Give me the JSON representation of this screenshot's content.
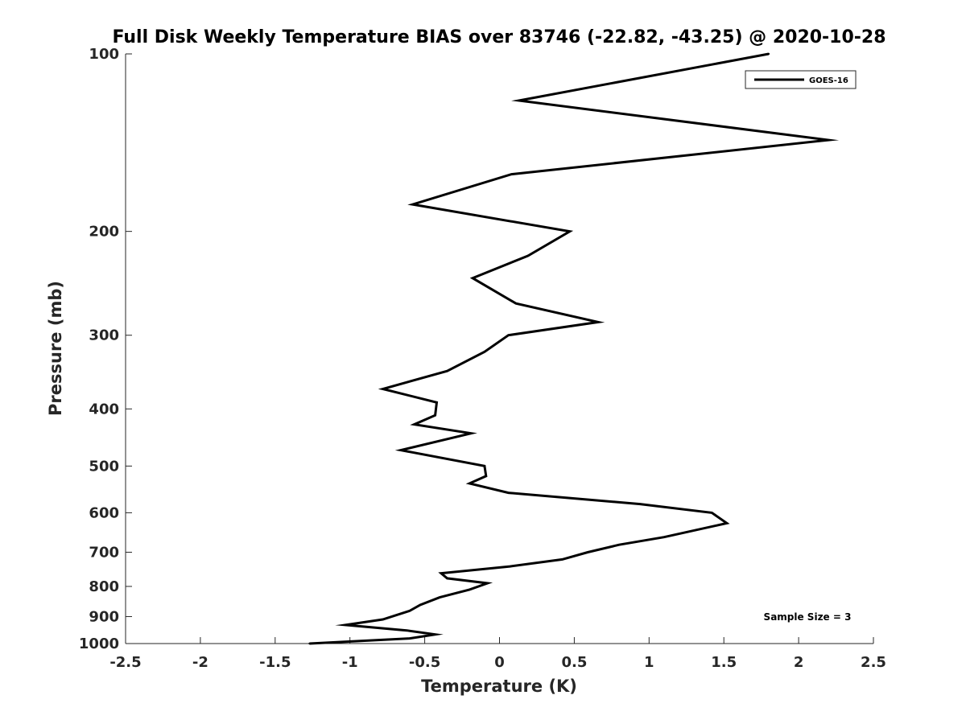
{
  "chart_data": {
    "type": "line",
    "title": "Full Disk Weekly Temperature BIAS over 83746 (-22.82, -43.25) @ 2020-10-28",
    "xlabel": "Temperature (K)",
    "ylabel": "Pressure (mb)",
    "xlim": [
      -2.5,
      2.5
    ],
    "ylim": [
      100,
      1000
    ],
    "y_scale": "log",
    "y_reversed": true,
    "grid": false,
    "legend_position": "top-right",
    "x_ticks": [
      "-2.5",
      "-2",
      "-1.5",
      "-1",
      "-0.5",
      "0",
      "0.5",
      "1",
      "1.5",
      "2",
      "2.5"
    ],
    "y_ticks": [
      "100",
      "200",
      "300",
      "400",
      "500",
      "600",
      "700",
      "800",
      "900",
      "1000"
    ],
    "series": [
      {
        "name": "GOES-16",
        "color": "#000000",
        "points": [
          {
            "x": 1.8,
            "y": 100
          },
          {
            "x": 0.13,
            "y": 120
          },
          {
            "x": 2.2,
            "y": 140
          },
          {
            "x": 0.08,
            "y": 160
          },
          {
            "x": -0.58,
            "y": 180
          },
          {
            "x": 0.47,
            "y": 200
          },
          {
            "x": 0.19,
            "y": 220
          },
          {
            "x": -0.18,
            "y": 240
          },
          {
            "x": 0.11,
            "y": 265
          },
          {
            "x": 0.66,
            "y": 285
          },
          {
            "x": 0.06,
            "y": 300
          },
          {
            "x": -0.1,
            "y": 320
          },
          {
            "x": -0.35,
            "y": 345
          },
          {
            "x": -0.78,
            "y": 370
          },
          {
            "x": -0.42,
            "y": 390
          },
          {
            "x": -0.43,
            "y": 410
          },
          {
            "x": -0.57,
            "y": 425
          },
          {
            "x": -0.19,
            "y": 440
          },
          {
            "x": -0.66,
            "y": 470
          },
          {
            "x": -0.1,
            "y": 500
          },
          {
            "x": -0.09,
            "y": 520
          },
          {
            "x": -0.2,
            "y": 535
          },
          {
            "x": 0.06,
            "y": 555
          },
          {
            "x": 0.94,
            "y": 580
          },
          {
            "x": 1.42,
            "y": 600
          },
          {
            "x": 1.52,
            "y": 625
          },
          {
            "x": 1.1,
            "y": 660
          },
          {
            "x": 0.8,
            "y": 680
          },
          {
            "x": 0.59,
            "y": 700
          },
          {
            "x": 0.42,
            "y": 720
          },
          {
            "x": 0.07,
            "y": 740
          },
          {
            "x": -0.39,
            "y": 760
          },
          {
            "x": -0.35,
            "y": 775
          },
          {
            "x": -0.08,
            "y": 790
          },
          {
            "x": -0.2,
            "y": 810
          },
          {
            "x": -0.4,
            "y": 835
          },
          {
            "x": -0.53,
            "y": 860
          },
          {
            "x": -0.6,
            "y": 880
          },
          {
            "x": -0.78,
            "y": 910
          },
          {
            "x": -1.03,
            "y": 930
          },
          {
            "x": -0.62,
            "y": 950
          },
          {
            "x": -0.43,
            "y": 965
          },
          {
            "x": -0.6,
            "y": 980
          },
          {
            "x": -1.27,
            "y": 1000
          }
        ]
      }
    ],
    "annotations": [
      {
        "text": "Sample Size = 3"
      }
    ]
  }
}
